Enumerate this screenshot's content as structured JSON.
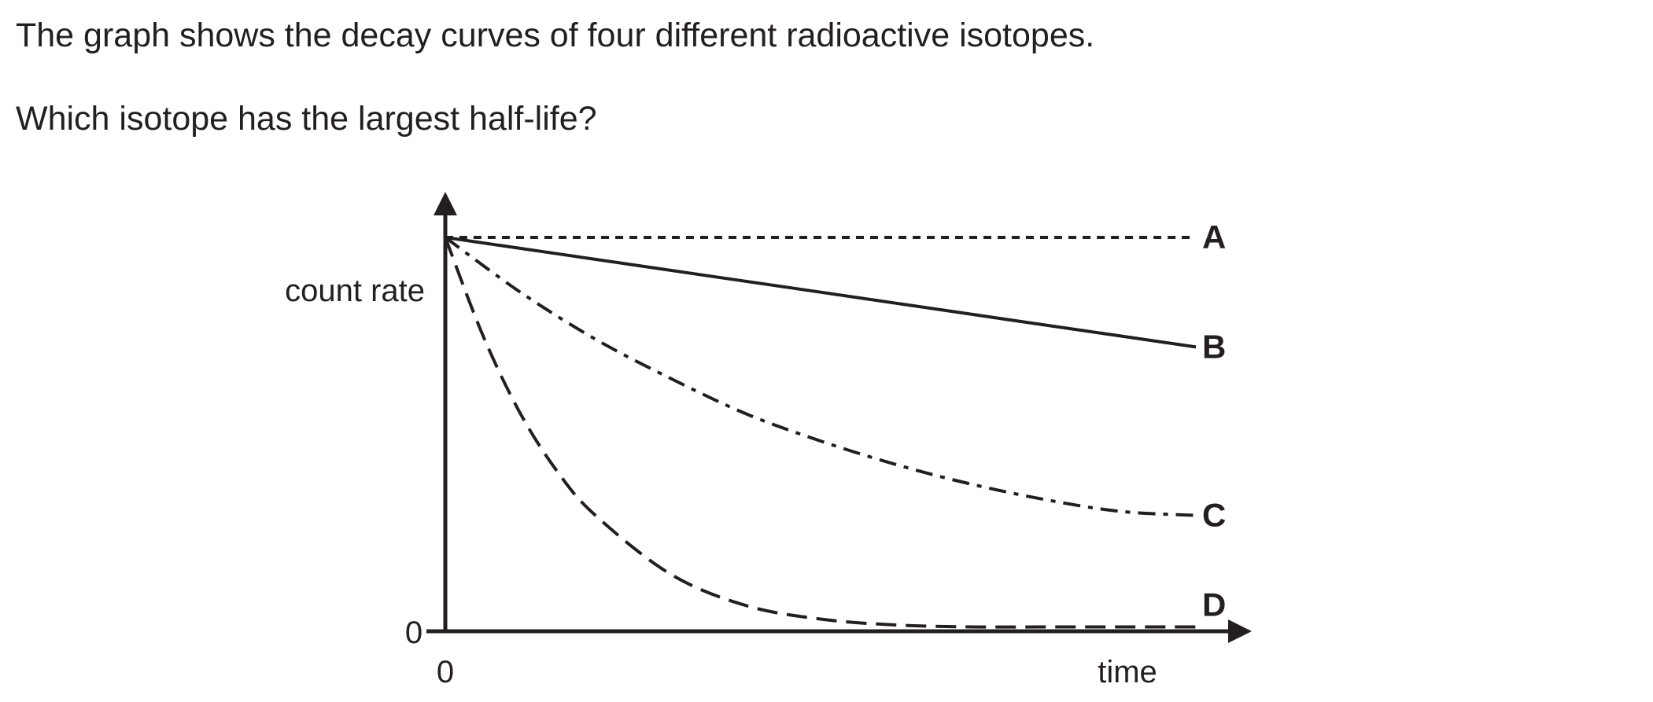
{
  "question": {
    "line1": "The graph shows the decay curves of four different radioactive isotopes.",
    "line2": "Which isotope has the largest half-life?"
  },
  "chart_data": {
    "type": "line",
    "xlabel": "time",
    "ylabel": "count rate",
    "x_tick_labels": [
      "0"
    ],
    "y_tick_labels": [
      "0"
    ],
    "xlim": [
      0,
      1
    ],
    "ylim": [
      0,
      1
    ],
    "grid": false,
    "line_color": "#231f20",
    "series": [
      {
        "name": "A",
        "style": "dotted",
        "x": [
          0,
          0.25,
          0.5,
          0.75,
          1
        ],
        "values": [
          1,
          1,
          1,
          1,
          1
        ]
      },
      {
        "name": "B",
        "style": "solid",
        "x": [
          0,
          0.25,
          0.5,
          0.75,
          1
        ],
        "values": [
          1,
          0.93,
          0.86,
          0.79,
          0.72
        ]
      },
      {
        "name": "C",
        "style": "dash-dot",
        "x": [
          0,
          0.1,
          0.2,
          0.3,
          0.4,
          0.5,
          0.6,
          0.7,
          0.8,
          0.9,
          1
        ],
        "values": [
          1,
          0.86,
          0.74,
          0.64,
          0.55,
          0.48,
          0.42,
          0.37,
          0.33,
          0.3,
          0.29
        ]
      },
      {
        "name": "D",
        "style": "dashed",
        "x": [
          0,
          0.05,
          0.1,
          0.15,
          0.2,
          0.3,
          0.4,
          0.5,
          0.6,
          0.7,
          0.8,
          0.9,
          1
        ],
        "values": [
          1,
          0.75,
          0.55,
          0.4,
          0.29,
          0.14,
          0.06,
          0.025,
          0.01,
          0.005,
          0.005,
          0.005,
          0.005
        ]
      }
    ]
  }
}
